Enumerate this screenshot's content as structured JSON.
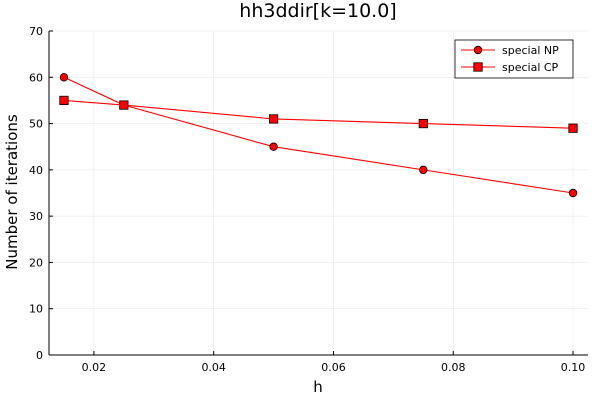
{
  "chart_data": {
    "type": "line",
    "title": "hh3ddir[k=10.0]",
    "xlabel": "h",
    "ylabel": "Number of iterations",
    "xlim": [
      0.0125,
      0.1025
    ],
    "ylim": [
      0,
      70
    ],
    "xticks": [
      0.02,
      0.04,
      0.06,
      0.08,
      0.1
    ],
    "xtick_labels": [
      "0.02",
      "0.04",
      "0.06",
      "0.08",
      "0.10"
    ],
    "yticks": [
      0,
      10,
      20,
      30,
      40,
      50,
      60,
      70
    ],
    "ytick_labels": [
      "0",
      "10",
      "20",
      "30",
      "40",
      "50",
      "60",
      "70"
    ],
    "grid": true,
    "legend_position": "top-right",
    "series": [
      {
        "name": "special NP",
        "marker": "circle",
        "color": "#ff0000",
        "x": [
          0.015,
          0.025,
          0.05,
          0.075,
          0.1
        ],
        "y": [
          60,
          54,
          45,
          40,
          35
        ]
      },
      {
        "name": "special CP",
        "marker": "square",
        "color": "#ff0000",
        "x": [
          0.015,
          0.025,
          0.05,
          0.075,
          0.1
        ],
        "y": [
          55,
          54,
          51,
          50,
          49
        ]
      }
    ]
  }
}
